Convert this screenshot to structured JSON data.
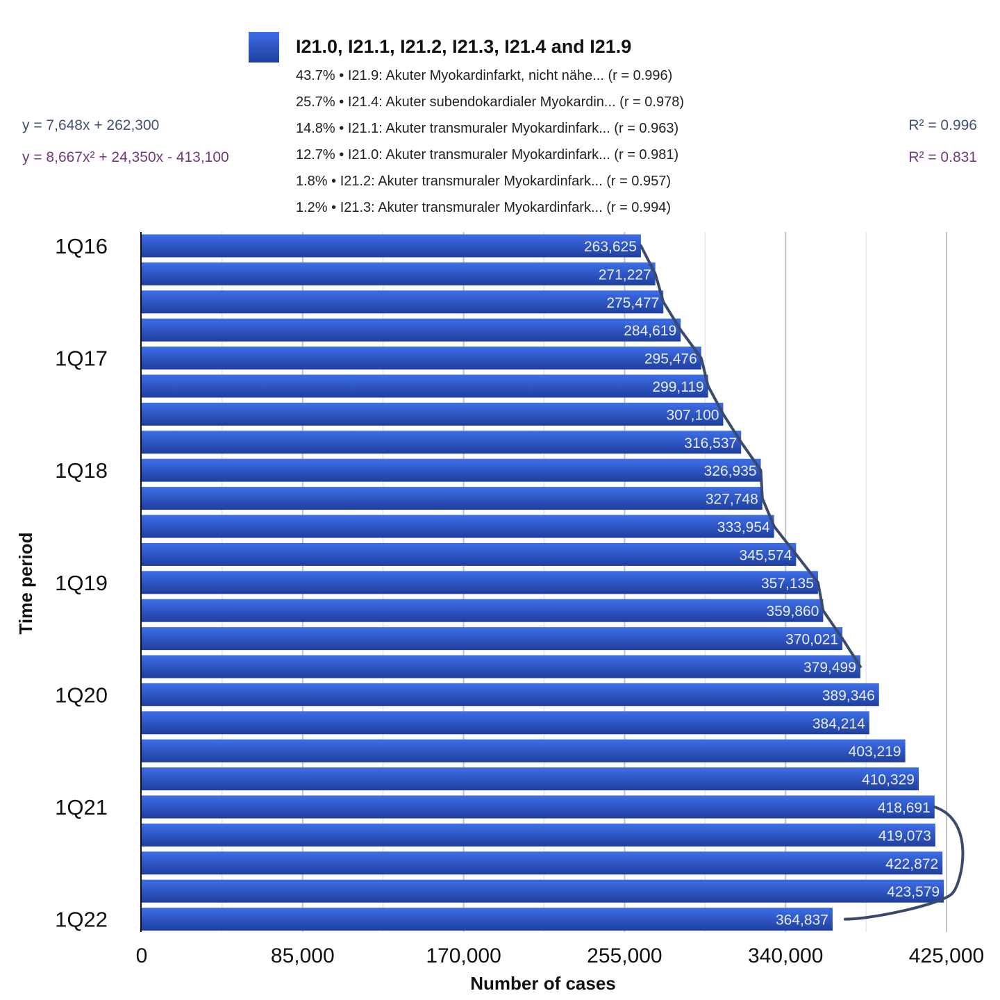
{
  "legend": {
    "title": "I21.0, I21.1, I21.2, I21.3, I21.4 and I21.9",
    "items": [
      "43.7% • I21.9: Akuter Myokardinfarkt, nicht nähe... (r = 0.996)",
      "25.7% • I21.4: Akuter subendokardialer Myokardin... (r = 0.978)",
      "14.8% • I21.1: Akuter transmuraler Myokardinfark... (r = 0.963)",
      "12.7% • I21.0: Akuter transmuraler Myokardinfark... (r = 0.981)",
      "1.8% • I21.2: Akuter transmuraler Myokardinfark... (r = 0.957)",
      "1.2% • I21.3: Akuter transmuraler Myokardinfark... (r = 0.994)"
    ]
  },
  "trendlines": {
    "linear_equation": "y = 7,648x + 262,300",
    "linear_r2": "R² = 0.996",
    "quadratic_equation": "y = 8,667x² + 24,350x - 413,100",
    "quadratic_r2": "R² = 0.831"
  },
  "colors": {
    "bar_top": "#3d6ee8",
    "bar_bottom": "#1f3f9e",
    "trend_line": "#3a4a6e",
    "linear_text": "#3f5275",
    "quadratic_text": "#74387e"
  },
  "chart_data": {
    "type": "bar",
    "orientation": "horizontal",
    "xlabel": "Number of cases",
    "ylabel": "Time period",
    "xlim": [
      0,
      425000
    ],
    "xticks": [
      0,
      85000,
      170000,
      255000,
      340000,
      425000
    ],
    "xtick_labels": [
      "0",
      "85,000",
      "170,000",
      "255,000",
      "340,000",
      "425,000"
    ],
    "ytick_labels": [
      {
        "label": "1Q16",
        "index": 0
      },
      {
        "label": "1Q17",
        "index": 4
      },
      {
        "label": "1Q18",
        "index": 8
      },
      {
        "label": "1Q19",
        "index": 12
      },
      {
        "label": "1Q20",
        "index": 16
      },
      {
        "label": "1Q21",
        "index": 20
      },
      {
        "label": "1Q22",
        "index": 24
      }
    ],
    "values": [
      263625,
      271227,
      275477,
      284619,
      295476,
      299119,
      307100,
      316537,
      326935,
      327748,
      333954,
      345574,
      357135,
      359860,
      370021,
      379499,
      389346,
      384214,
      403219,
      410329,
      418691,
      419073,
      422872,
      423579,
      364837
    ],
    "value_labels": [
      "263,625",
      "271,227",
      "275,477",
      "284,619",
      "295,476",
      "299,119",
      "307,100",
      "316,537",
      "326,935",
      "327,748",
      "333,954",
      "345,574",
      "357,135",
      "359,860",
      "370,021",
      "379,499",
      "389,346",
      "384,214",
      "403,219",
      "410,329",
      "418,691",
      "419,073",
      "422,872",
      "423,579",
      "364,837"
    ],
    "grid": true
  }
}
